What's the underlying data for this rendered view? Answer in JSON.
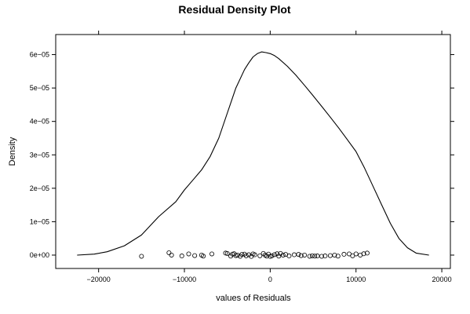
{
  "chart_data": {
    "type": "line",
    "title": "Residual Density Plot",
    "xlabel": "values of Residuals",
    "ylabel": "Density",
    "xlim": [
      -25000,
      21000
    ],
    "ylim": [
      -4e-06,
      6.6e-05
    ],
    "x_ticks": [
      {
        "value": -20000,
        "label": "−20000"
      },
      {
        "value": -10000,
        "label": "−10000"
      },
      {
        "value": 0,
        "label": "0"
      },
      {
        "value": 10000,
        "label": "10000"
      },
      {
        "value": 20000,
        "label": "20000"
      }
    ],
    "y_ticks": [
      {
        "value": 0,
        "label": "0e+00"
      },
      {
        "value": 1e-05,
        "label": "1e−05"
      },
      {
        "value": 2e-05,
        "label": "2e−05"
      },
      {
        "value": 3e-05,
        "label": "3e−05"
      },
      {
        "value": 4e-05,
        "label": "4e−05"
      },
      {
        "value": 5e-05,
        "label": "5e−05"
      },
      {
        "value": 6e-05,
        "label": "6e−05"
      }
    ],
    "grid": false,
    "series": [
      {
        "style": "line",
        "x": [
          -22500,
          -20500,
          -19000,
          -17000,
          -15000,
          -13000,
          -11000,
          -10000,
          -9000,
          -8000,
          -7000,
          -6000,
          -5000,
          -4000,
          -3000,
          -2500,
          -2000,
          -1500,
          -1000,
          -500,
          0,
          500,
          1000,
          2000,
          3000,
          4000,
          5000,
          6000,
          7000,
          8000,
          9000,
          10000,
          11000,
          12000,
          13000,
          14000,
          15000,
          16000,
          17000,
          18500
        ],
        "y": [
          0.0,
          3e-07,
          1e-06,
          2.8e-06,
          6e-06,
          1.15e-05,
          1.6e-05,
          1.95e-05,
          2.25e-05,
          2.55e-05,
          2.95e-05,
          3.5e-05,
          4.25e-05,
          5e-05,
          5.55e-05,
          5.75e-05,
          5.93e-05,
          6.03e-05,
          6.08e-05,
          6.06e-05,
          6.03e-05,
          5.97e-05,
          5.88e-05,
          5.65e-05,
          5.38e-05,
          5.08e-05,
          4.77e-05,
          4.45e-05,
          4.13e-05,
          3.8e-05,
          3.45e-05,
          3.1e-05,
          2.6e-05,
          2.05e-05,
          1.5e-05,
          9.5e-06,
          5e-06,
          2.2e-06,
          6e-07,
          0.0
        ]
      },
      {
        "style": "points",
        "x": [
          -15000,
          -11800,
          -11500,
          -10300,
          -9500,
          -8800,
          -8000,
          -7800,
          -6800,
          -5200,
          -5000,
          -4600,
          -4400,
          -4200,
          -4000,
          -3800,
          -3500,
          -3300,
          -3000,
          -2800,
          -2500,
          -2200,
          -2000,
          -1800,
          -1200,
          -800,
          -600,
          -400,
          -200,
          0,
          200,
          500,
          800,
          1000,
          1200,
          1500,
          1800,
          2200,
          2800,
          3300,
          3600,
          4000,
          4600,
          4900,
          5200,
          5500,
          6000,
          6400,
          7000,
          7500,
          7900,
          8600,
          9200,
          9600,
          10000,
          10500,
          10900,
          11300
        ],
        "y": [
          -3.5e-07,
          7e-07,
          0.0,
          -2.5e-07,
          3.5e-07,
          -1.5e-07,
          0.0,
          -3e-07,
          3.5e-07,
          6e-07,
          5e-07,
          -3e-07,
          3e-07,
          4e-07,
          -1.5e-07,
          0.0,
          -3.5e-07,
          2e-07,
          3e-07,
          -2e-07,
          1e-07,
          -4e-07,
          3.5e-07,
          1e-07,
          -2e-07,
          5e-07,
          0.0,
          -3e-07,
          3e-07,
          -4e-07,
          -2e-07,
          1.5e-07,
          4e-07,
          -3e-07,
          5e-07,
          0.0,
          2e-07,
          -2.5e-07,
          1e-07,
          2e-07,
          -1.5e-07,
          0.0,
          -3.5e-07,
          -2e-07,
          -3e-07,
          -2.5e-07,
          -3.5e-07,
          -2.5e-07,
          -1.5e-07,
          0.0,
          -3e-07,
          2.5e-07,
          3.5e-07,
          -2e-07,
          3.5e-07,
          0.0,
          4e-07,
          6e-07
        ]
      }
    ]
  }
}
